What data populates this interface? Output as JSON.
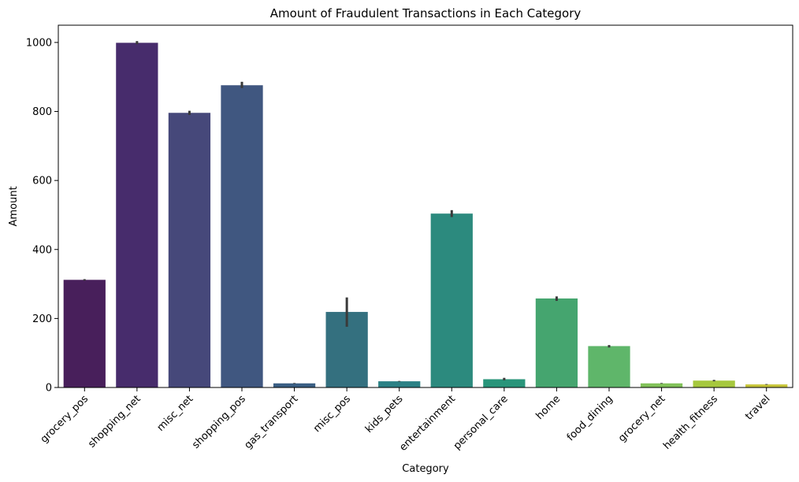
{
  "chart_data": {
    "type": "bar",
    "title": "Amount of Fraudulent Transactions in Each Category",
    "xlabel": "Category",
    "ylabel": "Amount",
    "ylim": [
      0,
      1050
    ],
    "yticks": [
      0,
      200,
      400,
      600,
      800,
      1000
    ],
    "grid": false,
    "categories": [
      "grocery_pos",
      "shopping_net",
      "misc_net",
      "shopping_pos",
      "gas_transport",
      "misc_pos",
      "kids_pets",
      "entertainment",
      "personal_care",
      "home",
      "food_dining",
      "grocery_net",
      "health_fitness",
      "travel"
    ],
    "values": [
      312,
      999,
      796,
      876,
      12,
      219,
      18,
      504,
      24,
      258,
      120,
      12,
      20,
      9
    ],
    "error_low": [
      310,
      995,
      790,
      868,
      11,
      176,
      17,
      494,
      21,
      251,
      116,
      11,
      18,
      8
    ],
    "error_high": [
      314,
      1004,
      802,
      886,
      13,
      261,
      19,
      514,
      28,
      264,
      123,
      13,
      22,
      10
    ],
    "colors": [
      "#481f5b",
      "#472c6c",
      "#46487a",
      "#405780",
      "#3a5f84",
      "#34707f",
      "#2c8185",
      "#2c8a7e",
      "#29957a",
      "#45a56f",
      "#5fb66a",
      "#82c25a",
      "#a6c83e",
      "#c7c53a"
    ]
  }
}
